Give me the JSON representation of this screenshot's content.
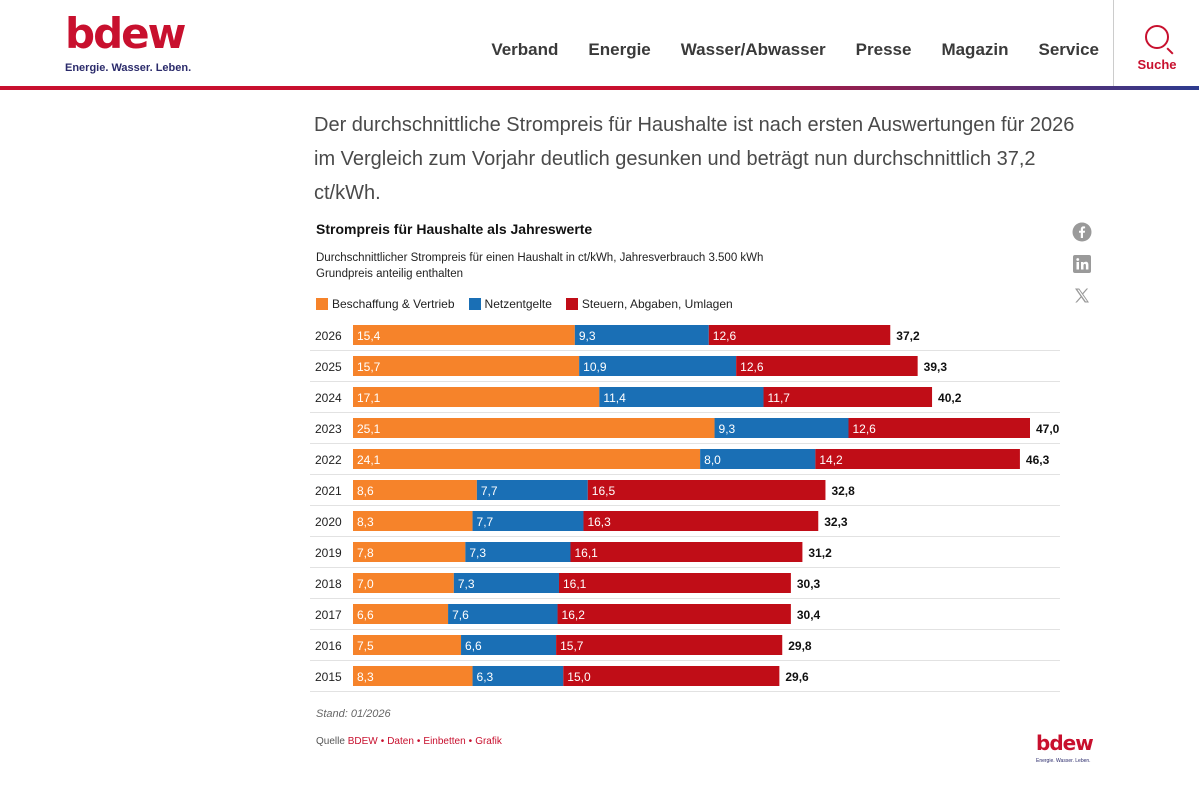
{
  "header": {
    "logo_word": "bdew",
    "logo_claim": "Energie. Wasser. Leben.",
    "nav": [
      "Verband",
      "Energie",
      "Wasser/Abwasser",
      "Presse",
      "Magazin",
      "Service"
    ],
    "search_label": "Suche"
  },
  "intro": "Der durchschnittliche Strompreis für Haushalte ist nach ersten Auswertungen für 2026 im Vergleich zum Vorjahr deutlich gesunken und beträgt nun durchschnittlich 37,2 ct/kWh.",
  "social": [
    "facebook-icon",
    "linkedin-icon",
    "x-icon"
  ],
  "colors": {
    "orange": "#f6832a",
    "blue": "#1a6fb5",
    "red": "#c00d17",
    "brand": "#c8102e"
  },
  "chart_data": {
    "type": "bar",
    "orientation": "horizontal-stacked",
    "title": "Strompreis für Haushalte als Jahreswerte",
    "subtitle": "Durchschnittlicher Strompreis für einen Haushalt in ct/kWh, Jahresverbrauch 3.500 kWh",
    "subtitle2": "Grundpreis anteilig enthalten",
    "categories": [
      "2026",
      "2025",
      "2024",
      "2023",
      "2022",
      "2021",
      "2020",
      "2019",
      "2018",
      "2017",
      "2016",
      "2015"
    ],
    "series": [
      {
        "name": "Beschaffung & Vertrieb",
        "color": "#f6832a",
        "values": [
          15.4,
          15.7,
          17.1,
          25.1,
          24.1,
          8.6,
          8.3,
          7.8,
          7.0,
          6.6,
          7.5,
          8.3
        ]
      },
      {
        "name": "Netzentgelte",
        "color": "#1a6fb5",
        "values": [
          9.3,
          10.9,
          11.4,
          9.3,
          8.0,
          7.7,
          7.7,
          7.3,
          7.3,
          7.6,
          6.6,
          6.3
        ]
      },
      {
        "name": "Steuern, Abgaben, Umlagen",
        "color": "#c00d17",
        "values": [
          12.6,
          12.6,
          11.7,
          12.6,
          14.2,
          16.5,
          16.3,
          16.1,
          16.1,
          16.2,
          15.7,
          15.0
        ]
      }
    ],
    "totals": [
      37.2,
      39.3,
      40.2,
      47.0,
      46.3,
      32.8,
      32.3,
      31.2,
      30.3,
      30.4,
      29.8,
      29.6
    ],
    "xlim": [
      0,
      47
    ]
  },
  "footer": {
    "stand": "Stand: 01/2026",
    "source_prefix": "Quelle",
    "source_name": "BDEW",
    "links": [
      "Daten",
      "Einbetten",
      "Grafik"
    ],
    "logo_word": "bdew",
    "logo_claim": "Energie. Wasser. Leben."
  }
}
